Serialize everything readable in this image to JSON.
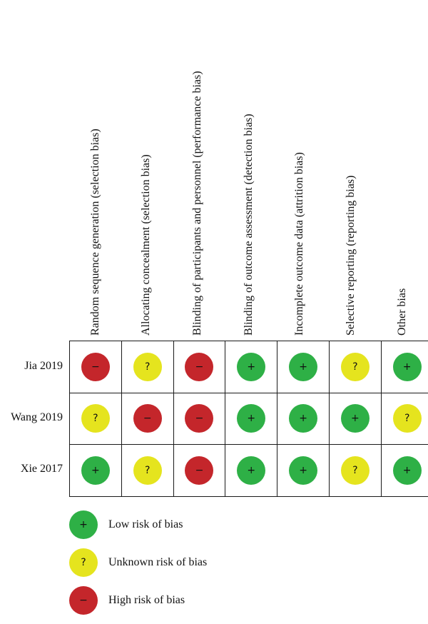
{
  "colors": {
    "low": "#2eb046",
    "unknown": "#e5e41e",
    "high": "#c4262b"
  },
  "columns": [
    "Random sequence generation (selection bias)",
    "Allocating concealment (selection bias)",
    "Blinding of participants and personnel (performance bias)",
    "Blinding of outcome assessment (detection bias)",
    "Incomplete outcome data (attrition bias)",
    "Selective reporting (reporting bias)",
    "Other bias"
  ],
  "rows": [
    {
      "study": "Jia 2019",
      "ratings": [
        "high",
        "unknown",
        "high",
        "low",
        "low",
        "unknown",
        "low"
      ]
    },
    {
      "study": "Wang 2019",
      "ratings": [
        "unknown",
        "high",
        "high",
        "low",
        "low",
        "low",
        "unknown"
      ]
    },
    {
      "study": "Xie 2017",
      "ratings": [
        "low",
        "unknown",
        "high",
        "low",
        "low",
        "unknown",
        "low"
      ]
    }
  ],
  "symbols": {
    "low": "+",
    "unknown": "?",
    "high": "−"
  },
  "legend": [
    {
      "key": "low",
      "label": "Low risk of bias"
    },
    {
      "key": "unknown",
      "label": "Unknown risk of bias"
    },
    {
      "key": "high",
      "label": "High risk of bias"
    }
  ]
}
